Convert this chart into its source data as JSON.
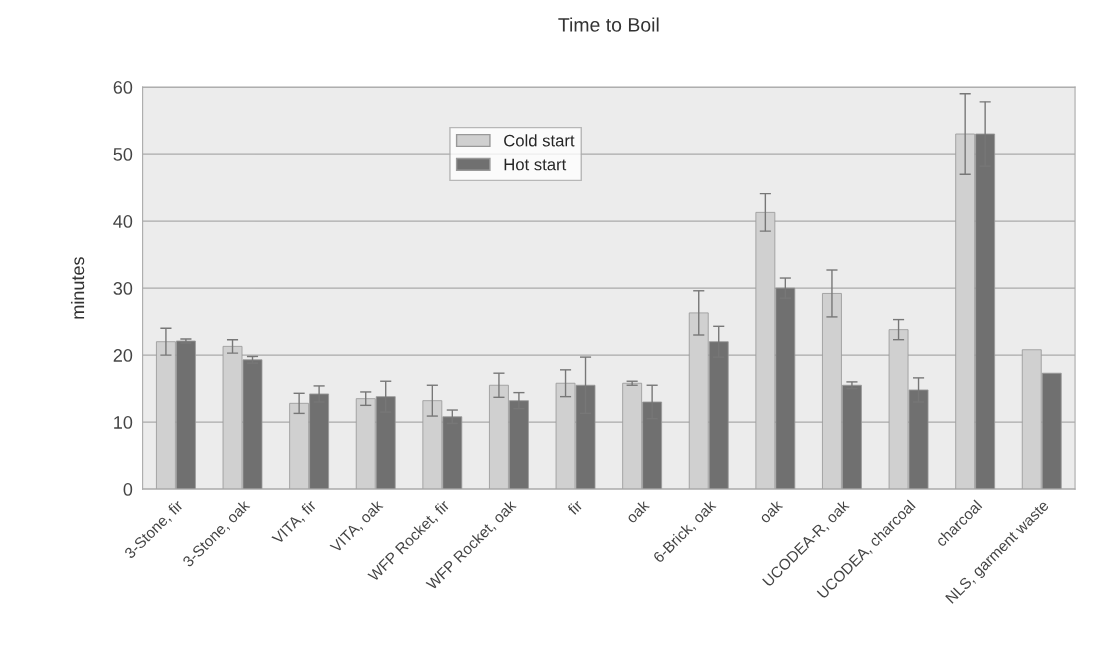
{
  "chart_data": {
    "type": "bar",
    "title": "Time to Boil",
    "ylabel": "minutes",
    "categories": [
      "3-Stone, fir",
      "3-Stone, oak",
      "VITA, fir",
      "VITA, oak",
      "WFP Rocket, fir",
      "WFP Rocket, oak",
      "fir",
      "oak",
      "6-Brick, oak",
      "oak",
      "UCODEA-R, oak",
      "UCODEA, charcoal",
      "charcoal",
      "NLS, garment waste"
    ],
    "series": [
      {
        "name": "Cold start",
        "color": "#d0d0d0",
        "values": [
          22,
          21.3,
          12.8,
          13.5,
          13.2,
          15.5,
          15.8,
          15.8,
          26.3,
          41.3,
          29.2,
          23.8,
          53,
          20.8
        ],
        "errors": [
          2,
          1,
          1.5,
          1,
          2.3,
          1.8,
          2,
          0.3,
          3.3,
          2.8,
          3.5,
          1.5,
          6,
          null
        ]
      },
      {
        "name": "Hot start",
        "color": "#707070",
        "values": [
          22.1,
          19.3,
          14.2,
          13.8,
          10.8,
          13.2,
          15.5,
          13,
          22,
          30,
          15.5,
          14.8,
          53,
          17.3
        ],
        "errors": [
          0.3,
          0.5,
          1.2,
          2.3,
          1,
          1.2,
          4.2,
          2.5,
          2.3,
          1.5,
          0.5,
          1.8,
          4.8,
          null
        ]
      }
    ],
    "ylim": [
      0,
      60
    ],
    "yticks": [
      0,
      10,
      20,
      30,
      40,
      50,
      60
    ],
    "grid": "y",
    "legend": "top"
  }
}
